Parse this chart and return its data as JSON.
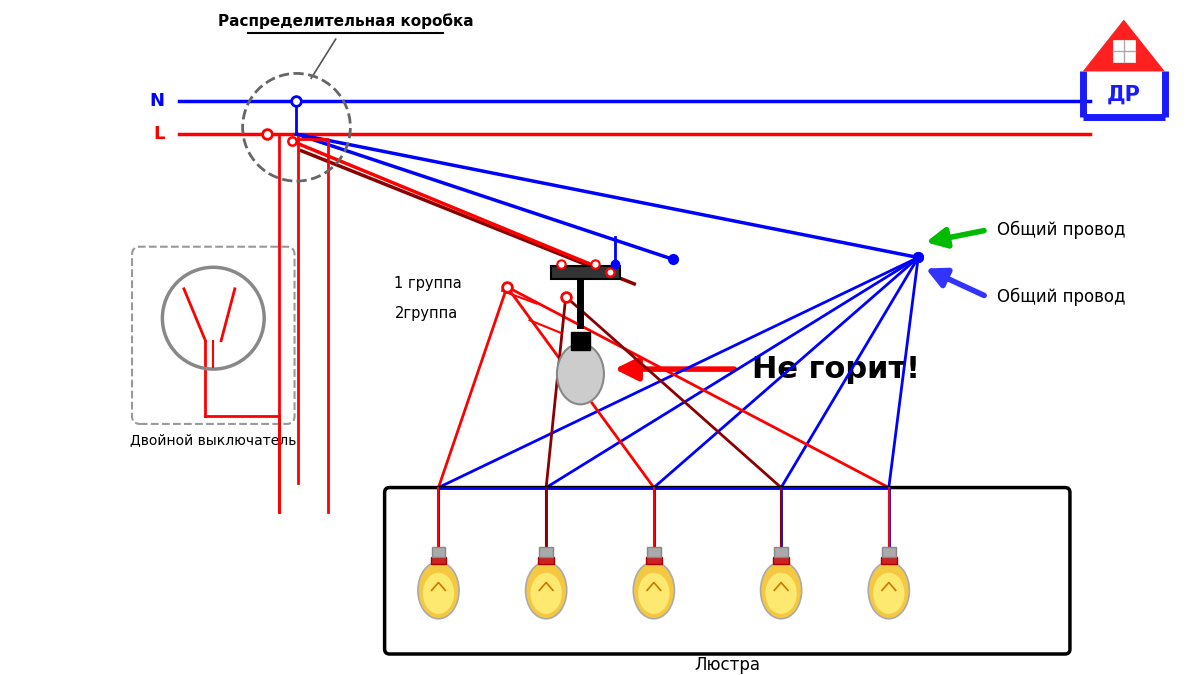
{
  "bg_color": "#ffffff",
  "N_label": "N",
  "L_label": "L",
  "box_label": "Распределительная коробка",
  "switch_label": "Двойной выключатель",
  "chandelier_label": "Люстра",
  "common_wire_label1": "Общий провод",
  "common_wire_label2": "Общий провод",
  "not_working_label": "Не горит!",
  "group1_label": "1 группа",
  "group2_label": "2группа",
  "blue_color": "#0000ff",
  "red_color": "#ff0000",
  "dark_red_color": "#8b0000",
  "green_color": "#00bb00",
  "purple_color": "#800080",
  "gray_color": "#888888",
  "bulb_color": "#f5c842",
  "logo_house_color": "#ff2020",
  "logo_text_color": "#1a1aff",
  "bulb_positions": [
    4.35,
    5.45,
    6.55,
    7.85,
    8.95
  ]
}
